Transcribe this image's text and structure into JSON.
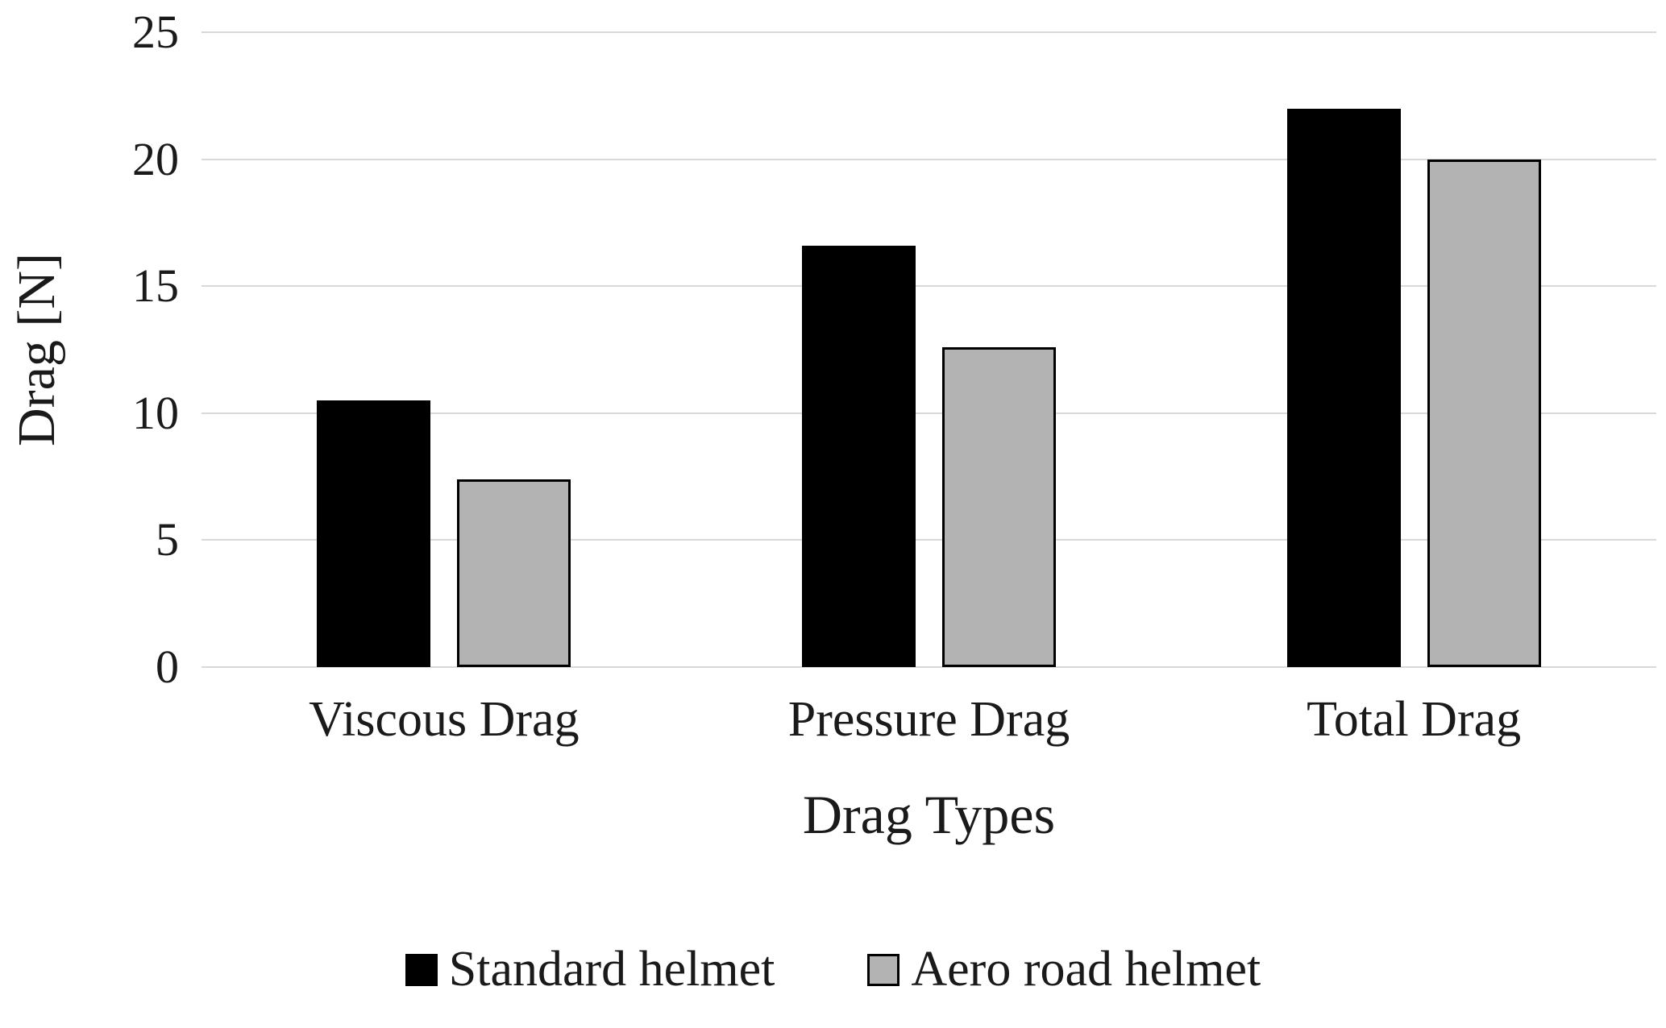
{
  "chart_data": {
    "type": "bar",
    "title": "",
    "categories": [
      "Viscous Drag",
      "Pressure Drag",
      "Total Drag"
    ],
    "series": [
      {
        "name": "Standard helmet",
        "color": "#000000",
        "values": [
          10.5,
          16.6,
          22.0
        ]
      },
      {
        "name": "Aero road helmet",
        "color": "#b3b3b3",
        "values": [
          7.4,
          12.6,
          20.0
        ]
      }
    ],
    "xlabel": "Drag Types",
    "ylabel": "Drag [N]",
    "ylim": [
      0,
      25
    ],
    "yticks": [
      0,
      5,
      10,
      15,
      20,
      25
    ],
    "grid": true,
    "gridline_color": "#d9d9d9",
    "legend_position": "bottom"
  }
}
